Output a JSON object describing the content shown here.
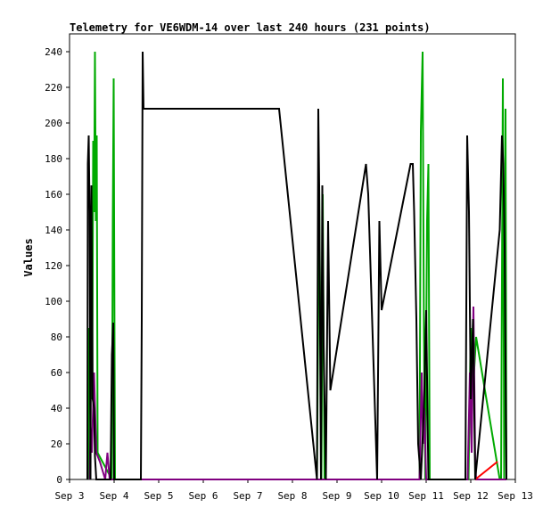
{
  "chart_data": {
    "type": "line",
    "title": "Telemetry for VE6WDM-14 over last 240 hours (231 points)",
    "xlabel": "",
    "ylabel": "Values",
    "xlim": [
      3.0,
      13.0
    ],
    "ylim": [
      0,
      250
    ],
    "x_ticks": [
      {
        "value": 3,
        "label": "Sep 3"
      },
      {
        "value": 4,
        "label": "Sep 4"
      },
      {
        "value": 5,
        "label": "Sep 5"
      },
      {
        "value": 6,
        "label": "Sep 6"
      },
      {
        "value": 7,
        "label": "Sep 7"
      },
      {
        "value": 8,
        "label": "Sep 8"
      },
      {
        "value": 9,
        "label": "Sep 9"
      },
      {
        "value": 10,
        "label": "Sep 10"
      },
      {
        "value": 11,
        "label": "Sep 11"
      },
      {
        "value": 12,
        "label": "Sep 12"
      },
      {
        "value": 13,
        "label": "Sep 13"
      }
    ],
    "y_ticks": [
      0,
      20,
      40,
      60,
      80,
      100,
      120,
      140,
      160,
      180,
      200,
      220,
      240
    ],
    "grid": false,
    "legend": "none",
    "series": [
      {
        "color": "#00aa00",
        "points": [
          [
            3.42,
            0
          ],
          [
            3.44,
            85
          ],
          [
            3.46,
            50
          ],
          [
            3.48,
            150
          ],
          [
            3.51,
            45
          ],
          [
            3.53,
            190
          ],
          [
            3.55,
            150
          ],
          [
            3.57,
            240
          ],
          [
            3.59,
            145
          ],
          [
            3.61,
            193
          ],
          [
            3.63,
            15
          ],
          [
            3.95,
            0
          ],
          [
            3.97,
            145
          ],
          [
            3.99,
            225
          ],
          [
            4.0,
            145
          ],
          [
            4.02,
            0
          ],
          [
            8.55,
            0
          ],
          [
            8.6,
            165
          ],
          [
            8.65,
            0
          ],
          [
            8.68,
            160
          ],
          [
            8.72,
            0
          ],
          [
            10.85,
            0
          ],
          [
            10.88,
            195
          ],
          [
            10.92,
            240
          ],
          [
            10.95,
            80
          ],
          [
            10.98,
            0
          ],
          [
            11.02,
            145
          ],
          [
            11.05,
            177
          ],
          [
            11.08,
            0
          ],
          [
            11.95,
            0
          ],
          [
            12.0,
            85
          ],
          [
            12.05,
            50
          ],
          [
            12.12,
            80
          ],
          [
            12.65,
            0
          ],
          [
            12.68,
            0
          ],
          [
            12.72,
            225
          ],
          [
            12.75,
            0
          ],
          [
            12.78,
            208
          ],
          [
            12.8,
            0
          ]
        ]
      },
      {
        "color": "#800080",
        "points": [
          [
            3.45,
            0
          ],
          [
            3.47,
            30
          ],
          [
            3.5,
            15
          ],
          [
            3.55,
            60
          ],
          [
            3.6,
            15
          ],
          [
            3.68,
            10
          ],
          [
            3.8,
            0
          ],
          [
            3.85,
            15
          ],
          [
            3.9,
            0
          ],
          [
            4.0,
            0
          ],
          [
            10.85,
            0
          ],
          [
            10.9,
            60
          ],
          [
            10.93,
            20
          ],
          [
            10.96,
            40
          ],
          [
            11.0,
            0
          ],
          [
            11.93,
            0
          ],
          [
            11.98,
            60
          ],
          [
            12.02,
            15
          ],
          [
            12.06,
            97
          ],
          [
            12.1,
            10
          ],
          [
            12.12,
            0
          ],
          [
            12.7,
            0
          ],
          [
            12.8,
            0
          ]
        ]
      },
      {
        "color": "#ff0000",
        "points": [
          [
            12.1,
            0
          ],
          [
            12.6,
            10
          ]
        ]
      },
      {
        "color": "#000000",
        "points": [
          [
            3.4,
            0
          ],
          [
            3.41,
            177
          ],
          [
            3.43,
            193
          ],
          [
            3.45,
            150
          ],
          [
            3.47,
            0
          ],
          [
            3.49,
            165
          ],
          [
            3.52,
            45
          ],
          [
            3.55,
            40
          ],
          [
            3.57,
            13
          ],
          [
            3.6,
            0
          ],
          [
            3.92,
            0
          ],
          [
            3.95,
            70
          ],
          [
            3.98,
            88
          ],
          [
            4.0,
            0
          ],
          [
            4.6,
            0
          ],
          [
            4.62,
            90
          ],
          [
            4.64,
            240
          ],
          [
            4.66,
            208
          ],
          [
            7.7,
            208
          ],
          [
            8.55,
            0
          ],
          [
            8.58,
            208
          ],
          [
            8.6,
            165
          ],
          [
            8.64,
            0
          ],
          [
            8.67,
            165
          ],
          [
            8.7,
            75
          ],
          [
            8.75,
            0
          ],
          [
            8.8,
            145
          ],
          [
            8.85,
            50
          ],
          [
            9.65,
            177
          ],
          [
            9.7,
            160
          ],
          [
            9.9,
            0
          ],
          [
            9.95,
            145
          ],
          [
            10.0,
            95
          ],
          [
            10.65,
            177
          ],
          [
            10.7,
            177
          ],
          [
            10.73,
            150
          ],
          [
            10.78,
            90
          ],
          [
            10.82,
            20
          ],
          [
            10.88,
            0
          ],
          [
            10.95,
            40
          ],
          [
            11.0,
            95
          ],
          [
            11.05,
            0
          ],
          [
            11.1,
            0
          ],
          [
            11.88,
            0
          ],
          [
            11.92,
            193
          ],
          [
            11.96,
            150
          ],
          [
            12.0,
            45
          ],
          [
            12.05,
            90
          ],
          [
            12.1,
            0
          ],
          [
            12.65,
            140
          ],
          [
            12.7,
            193
          ],
          [
            12.73,
            177
          ],
          [
            12.76,
            130
          ],
          [
            12.8,
            0
          ]
        ]
      }
    ]
  }
}
